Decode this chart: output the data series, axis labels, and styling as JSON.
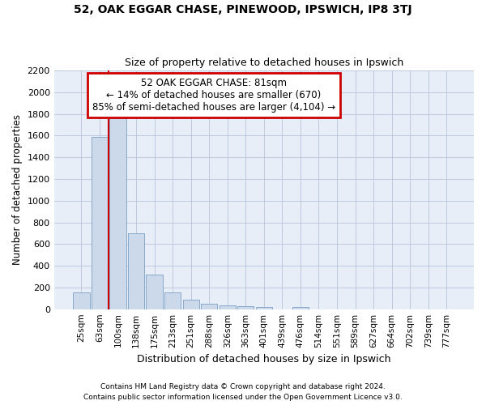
{
  "title1": "52, OAK EGGAR CHASE, PINEWOOD, IPSWICH, IP8 3TJ",
  "title2": "Size of property relative to detached houses in Ipswich",
  "xlabel": "Distribution of detached houses by size in Ipswich",
  "ylabel": "Number of detached properties",
  "footnote1": "Contains HM Land Registry data © Crown copyright and database right 2024.",
  "footnote2": "Contains public sector information licensed under the Open Government Licence v3.0.",
  "annotation_line1": "52 OAK EGGAR CHASE: 81sqm",
  "annotation_line2": "← 14% of detached houses are smaller (670)",
  "annotation_line3": "85% of semi-detached houses are larger (4,104) →",
  "bar_color": "#ccd9ea",
  "bar_edge_color": "#7aa0c4",
  "vline_color": "#cc0000",
  "annotation_box_edgecolor": "#cc0000",
  "bg_color": "#e8eef8",
  "grid_color": "#b8c4d8",
  "categories": [
    "25sqm",
    "63sqm",
    "100sqm",
    "138sqm",
    "175sqm",
    "213sqm",
    "251sqm",
    "288sqm",
    "326sqm",
    "363sqm",
    "401sqm",
    "439sqm",
    "476sqm",
    "514sqm",
    "551sqm",
    "589sqm",
    "627sqm",
    "664sqm",
    "702sqm",
    "739sqm",
    "777sqm"
  ],
  "values": [
    155,
    1585,
    1760,
    700,
    315,
    155,
    85,
    50,
    35,
    25,
    20,
    0,
    20,
    0,
    0,
    0,
    0,
    0,
    0,
    0,
    0
  ],
  "ylim": [
    0,
    2200
  ],
  "yticks": [
    0,
    200,
    400,
    600,
    800,
    1000,
    1200,
    1400,
    1600,
    1800,
    2000,
    2200
  ],
  "vline_x": 1.487
}
